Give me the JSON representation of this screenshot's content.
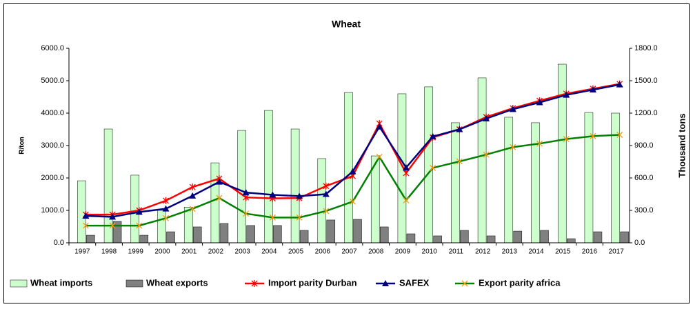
{
  "chart_data": {
    "type": "bar",
    "title": "Wheat",
    "y_label": "R/ton",
    "y2_label": "Thousand tons",
    "categories": [
      "1997",
      "1998",
      "1999",
      "2000",
      "2001",
      "2002",
      "2003",
      "2004",
      "2005",
      "2006",
      "2007",
      "2008",
      "2009",
      "2010",
      "2011",
      "2012",
      "2013",
      "2014",
      "2015",
      "2016",
      "2017"
    ],
    "ylim": [
      0,
      6000
    ],
    "yticks": [
      {
        "value": 0,
        "label": "0.0"
      },
      {
        "value": 1000,
        "label": "1000.0"
      },
      {
        "value": 2000,
        "label": "2000.0"
      },
      {
        "value": 3000,
        "label": "3000.0"
      },
      {
        "value": 4000,
        "label": "4000.0"
      },
      {
        "value": 5000,
        "label": "5000.0"
      },
      {
        "value": 6000,
        "label": "6000.0"
      }
    ],
    "y2lim": [
      0,
      1800
    ],
    "y2ticks": [
      {
        "value": 0,
        "label": "0.0"
      },
      {
        "value": 300,
        "label": "300.0"
      },
      {
        "value": 600,
        "label": "600.0"
      },
      {
        "value": 900,
        "label": "900.0"
      },
      {
        "value": 1200,
        "label": "1200.0"
      },
      {
        "value": 1500,
        "label": "1500.0"
      },
      {
        "value": 1800,
        "label": "1800.0"
      }
    ],
    "grid": false,
    "legend": "bottom",
    "series": [
      {
        "name": "Wheat imports",
        "kind": "bar",
        "axis": "y2",
        "color": "#ccffcc",
        "values": [
          574,
          1053,
          626,
          300,
          330,
          740,
          1040,
          1225,
          1053,
          779,
          1391,
          804,
          1379,
          1443,
          1111,
          1526,
          1162,
          1111,
          1653,
          1206,
          1200
        ]
      },
      {
        "name": "Wheat exports",
        "kind": "bar",
        "axis": "y2",
        "color": "#808080",
        "values": [
          70,
          198,
          70,
          102,
          147,
          179,
          160,
          160,
          115,
          211,
          217,
          147,
          83,
          64,
          115,
          64,
          108,
          115,
          38,
          102,
          102
        ]
      },
      {
        "name": "Import parity Durban",
        "kind": "line",
        "marker": "star",
        "color": "#ff0000",
        "marker_color": "#ff0000",
        "values": [
          870,
          870,
          1000,
          1300,
          1720,
          1980,
          1400,
          1370,
          1380,
          1750,
          2060,
          3680,
          2150,
          3250,
          3500,
          3880,
          4150,
          4380,
          4600,
          4750,
          4900
        ]
      },
      {
        "name": "SAFEX",
        "kind": "line",
        "marker": "triangle",
        "color": "#000080",
        "marker_color": "#000080",
        "values": [
          830,
          800,
          950,
          1050,
          1450,
          1880,
          1550,
          1480,
          1440,
          1500,
          2200,
          3580,
          2320,
          3280,
          3500,
          3830,
          4120,
          4330,
          4560,
          4720,
          4880
        ]
      },
      {
        "name": "Export parity africa",
        "kind": "line",
        "marker": "x",
        "color": "#008000",
        "marker_color": "#ff9900",
        "values": [
          530,
          530,
          530,
          760,
          1050,
          1380,
          900,
          780,
          780,
          980,
          1270,
          2650,
          1310,
          2310,
          2510,
          2720,
          2950,
          3060,
          3200,
          3290,
          3330
        ]
      }
    ]
  }
}
